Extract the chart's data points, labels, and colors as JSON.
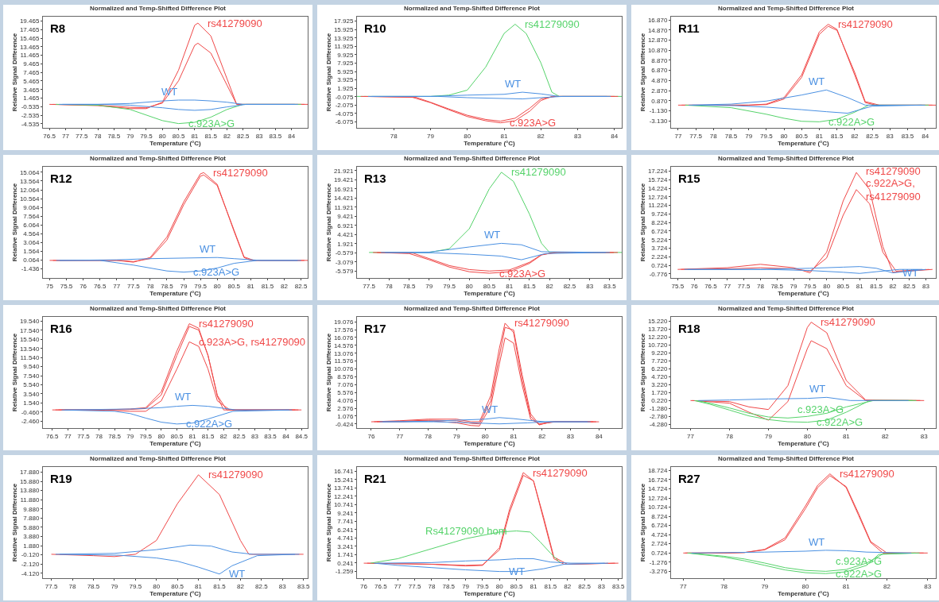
{
  "chart_data": [
    {
      "type": "line",
      "title": "Normalized and Temp-Shifted Difference Plot",
      "xlabel": "Temperature (°C)",
      "ylabel": "Relative Signal Difference",
      "xlim": [
        76.3,
        84.5
      ],
      "xticks": [
        76.5,
        77,
        77.5,
        78,
        78.5,
        79,
        79.5,
        80,
        80.5,
        81,
        81.5,
        82,
        82.5,
        83,
        83.5,
        84
      ],
      "ylim": [
        -5.5,
        20.5
      ],
      "yticks": [
        -4.535,
        -2.535,
        -0.535,
        1.465,
        3.465,
        5.465,
        7.465,
        9.465,
        11.465,
        13.465,
        15.465,
        17.465,
        19.465
      ],
      "series": [
        {
          "name": "rs41279090",
          "color": "#f04848",
          "x": [
            76.5,
            78,
            79,
            79.5,
            80,
            80.5,
            81,
            81.1,
            81.5,
            82,
            82.3,
            83,
            84.5
          ],
          "values": [
            0,
            -0.3,
            -1,
            -1,
            0.5,
            8,
            18.5,
            19,
            16,
            6,
            0,
            0,
            0
          ]
        },
        {
          "color": "#f04848",
          "x": [
            76.6,
            78,
            79,
            79.5,
            80,
            80.5,
            81,
            81.1,
            81.5,
            82,
            82.3,
            83,
            84.4
          ],
          "values": [
            0,
            -0.2,
            -0.7,
            -0.8,
            0.3,
            5.5,
            13.8,
            14.3,
            12,
            4.5,
            0,
            0,
            0
          ]
        },
        {
          "name": "c.923A>G",
          "color": "#55d36a",
          "x": [
            76.7,
            78,
            79,
            79.5,
            80,
            80.5,
            81,
            81.5,
            82,
            82.5,
            84.3
          ],
          "values": [
            0,
            -0.2,
            -1.2,
            -2.5,
            -3.8,
            -4.5,
            -4.2,
            -3,
            -1.2,
            0,
            0
          ]
        },
        {
          "name": "WT",
          "color": "#4a90e2",
          "x": [
            76.8,
            78,
            79,
            80,
            80.5,
            81,
            81.5,
            82,
            82.5,
            84.2
          ],
          "values": [
            0,
            0,
            0.2,
            0.8,
            1,
            1,
            0.8,
            0.5,
            0,
            0
          ]
        },
        {
          "color": "#4a90e2",
          "x": [
            76.9,
            78.2,
            79,
            80,
            80.5,
            81,
            81.5,
            82,
            82.6,
            84.1
          ],
          "values": [
            0,
            0,
            -0.2,
            -0.8,
            -1.2,
            -1.4,
            -1.2,
            -0.6,
            0,
            0
          ]
        }
      ],
      "annotations": [
        "R8"
      ]
    },
    {
      "type": "line",
      "title": "Normalized and Temp-Shifted Difference Plot",
      "xlabel": "Temperature (°C)",
      "ylabel": "Relative Signal Difference",
      "xlim": [
        77,
        84.2
      ],
      "xticks": [
        78,
        79,
        80,
        81,
        82,
        83,
        84
      ],
      "ylim": [
        -7.5,
        19
      ],
      "yticks": [
        -6.075,
        -4.075,
        -2.075,
        -0.075,
        1.925,
        3.925,
        5.925,
        7.925,
        9.925,
        11.925,
        13.925,
        15.925,
        17.925
      ],
      "series": [
        {
          "name": "rs41279090",
          "color": "#55d36a",
          "x": [
            77,
            79,
            79.5,
            80,
            80.5,
            81,
            81.3,
            81.6,
            82,
            82.3,
            82.5,
            84.2
          ],
          "values": [
            0,
            0,
            0.3,
            1.5,
            7,
            15,
            17.2,
            15,
            8,
            1,
            0,
            0
          ]
        },
        {
          "name": "c.923A>G",
          "color": "#f04848",
          "x": [
            77.1,
            78.5,
            79,
            79.5,
            80,
            80.5,
            80.9,
            81.3,
            81.7,
            82,
            82.3,
            84.1
          ],
          "values": [
            0,
            -0.2,
            -1.5,
            -3.2,
            -4.8,
            -5.8,
            -6.3,
            -5.8,
            -3.5,
            -1,
            0,
            0
          ]
        },
        {
          "color": "#f04848",
          "x": [
            77.2,
            78.6,
            79,
            79.5,
            80,
            80.5,
            80.9,
            81.3,
            81.7,
            82,
            82.4,
            84
          ],
          "values": [
            0,
            -0.2,
            -1.4,
            -3,
            -4.5,
            -5.5,
            -5.9,
            -5.2,
            -2.8,
            -0.6,
            0,
            0
          ]
        },
        {
          "name": "WT",
          "color": "#4a90e2",
          "x": [
            77.3,
            79,
            80,
            81,
            81.5,
            82,
            82.5,
            83.9
          ],
          "values": [
            0,
            0,
            0.3,
            0.5,
            1,
            0.6,
            0,
            0
          ]
        },
        {
          "color": "#4a90e2",
          "x": [
            77.4,
            79.2,
            80,
            81,
            81.5,
            82,
            82.6,
            83.8
          ],
          "values": [
            0,
            0,
            -0.3,
            -0.5,
            -0.6,
            -0.3,
            0,
            0
          ]
        }
      ],
      "annotations": [
        "R10"
      ]
    },
    {
      "type": "line",
      "title": "Normalized and Temp-Shifted Difference Plot",
      "xlabel": "Temperature (°C)",
      "ylabel": "Relative Signal Difference",
      "xlim": [
        76.8,
        84.3
      ],
      "xticks": [
        77,
        77.5,
        78,
        78.5,
        79,
        79.5,
        80,
        80.5,
        81,
        81.5,
        82,
        82.5,
        83,
        83.5,
        84
      ],
      "ylim": [
        -4.5,
        17.5
      ],
      "yticks": [
        {
          "value": -3.13,
          "label": "-3.130"
        },
        {
          "value": -1.13,
          "label": "-1.130"
        },
        {
          "value": 0.87,
          "label": "0.870"
        },
        {
          "value": 2.87,
          "label": "2.870"
        },
        {
          "value": 4.87,
          "label": "4.870"
        },
        {
          "value": 6.87,
          "label": "6.870"
        },
        {
          "value": 8.87,
          "label": "8.870"
        },
        {
          "value": 10.87,
          "label": "10.870"
        },
        {
          "value": 12.87,
          "label": "12.870"
        },
        {
          "value": 14.87,
          "label": "14.870"
        },
        {
          "value": 16.87,
          "label": "16.870"
        }
      ],
      "series": [
        {
          "name": "rs41279090",
          "color": "#f04848",
          "x": [
            77,
            78,
            79,
            79.5,
            80,
            80.5,
            81,
            81.25,
            81.5,
            82,
            82.3,
            82.6,
            84.3
          ],
          "values": [
            0,
            0,
            0,
            0.2,
            1.5,
            6,
            14.5,
            16,
            15,
            6,
            0.5,
            0,
            0
          ]
        },
        {
          "color": "#f04848",
          "x": [
            77.1,
            78.1,
            79,
            79.5,
            80,
            80.5,
            81,
            81.25,
            81.5,
            82,
            82.3,
            82.7,
            84.2
          ],
          "values": [
            0,
            0,
            0,
            0.1,
            1.2,
            5.5,
            14,
            15.6,
            14.8,
            6.5,
            0.7,
            0,
            0
          ]
        },
        {
          "name": "c.922A>G",
          "color": "#55d36a",
          "x": [
            77.2,
            78.5,
            79.5,
            80,
            80.5,
            81,
            81.5,
            82,
            82.4,
            84.1
          ],
          "values": [
            0,
            -0.5,
            -1.8,
            -2.6,
            -3.2,
            -3.3,
            -2.8,
            -1.4,
            0,
            0
          ]
        },
        {
          "name": "WT",
          "color": "#4a90e2",
          "x": [
            77.3,
            78.5,
            79.5,
            80.5,
            81.2,
            81.8,
            82.3,
            84
          ],
          "values": [
            0,
            0.2,
            0.8,
            2,
            3,
            1.5,
            0,
            0
          ]
        },
        {
          "color": "#4a90e2",
          "x": [
            77.4,
            78.6,
            79.5,
            80.5,
            81.2,
            81.8,
            82.5,
            83.9
          ],
          "values": [
            0,
            -0.1,
            -0.4,
            -0.9,
            -1.3,
            -1.6,
            -0.2,
            0
          ]
        }
      ],
      "annotations": [
        "R11"
      ]
    },
    {
      "type": "line",
      "title": "Normalized and Temp-Shifted Difference Plot",
      "xlabel": "Temperature (°C)",
      "ylabel": "Relative Signal Difference",
      "xlim": [
        74.8,
        82.7
      ],
      "xticks": [
        75,
        75.5,
        76,
        76.5,
        77,
        77.5,
        78,
        78.5,
        79,
        79.5,
        80,
        80.5,
        81,
        81.5,
        82,
        82.5
      ],
      "ylim": [
        -3,
        16
      ],
      "yticks": [
        -1.436,
        0.064,
        1.564,
        3.064,
        4.564,
        6.064,
        7.564,
        9.064,
        10.564,
        12.064,
        13.564,
        15.064
      ],
      "series": [
        {
          "name": "rs41279090",
          "color": "#f04848",
          "x": [
            75,
            77,
            77.5,
            78,
            78.5,
            79,
            79.5,
            79.6,
            80,
            80.5,
            80.8,
            81,
            82.7
          ],
          "values": [
            0,
            0,
            -0.3,
            0.5,
            4,
            10,
            14.8,
            15,
            13,
            5,
            0.5,
            0,
            0
          ]
        },
        {
          "color": "#f04848",
          "x": [
            75.1,
            77.1,
            77.5,
            78,
            78.5,
            79,
            79.5,
            79.6,
            80,
            80.5,
            80.8,
            81.1,
            82.6
          ],
          "values": [
            0,
            0,
            -0.2,
            0.3,
            3.5,
            9.5,
            14.4,
            14.6,
            12.8,
            5.2,
            0.6,
            0,
            0
          ]
        },
        {
          "name": "c.923A>G",
          "color": "#4a90e2",
          "x": [
            75.2,
            76.5,
            77.5,
            78.5,
            79,
            79.5,
            80,
            80.5,
            81.2,
            82.5
          ],
          "values": [
            0,
            0,
            -0.8,
            -1.8,
            -2,
            -1.8,
            -1.3,
            -0.5,
            0,
            0
          ]
        },
        {
          "name": "WT",
          "color": "#4a90e2",
          "x": [
            75.3,
            77,
            78,
            79,
            80,
            80.5,
            81.3,
            82.4
          ],
          "values": [
            0,
            0.1,
            0.3,
            0.4,
            0.5,
            0.3,
            0,
            0
          ]
        }
      ],
      "annotations": [
        "R12"
      ]
    },
    {
      "type": "line",
      "title": "Normalized and Temp-Shifted Difference Plot",
      "xlabel": "Temperature (°C)",
      "ylabel": "Relative Signal Difference",
      "xlim": [
        77.2,
        83.8
      ],
      "xticks": [
        77.5,
        78,
        78.5,
        79,
        79.5,
        80,
        80.5,
        81,
        81.5,
        82,
        82.5,
        83,
        83.5
      ],
      "ylim": [
        -7.5,
        23
      ],
      "yticks": [
        -5.579,
        -3.079,
        -0.579,
        1.921,
        4.421,
        6.921,
        9.421,
        11.921,
        14.421,
        16.921,
        19.421,
        21.921
      ],
      "series": [
        {
          "name": "rs41279090",
          "color": "#55d36a",
          "x": [
            77.5,
            79,
            79.5,
            80,
            80.5,
            80.8,
            81.1,
            81.5,
            81.8,
            82,
            83.8
          ],
          "values": [
            -0.5,
            -0.5,
            0.5,
            6,
            17,
            21.5,
            19,
            10,
            2,
            -0.5,
            -0.5
          ]
        },
        {
          "name": "c.923A>G",
          "color": "#f04848",
          "x": [
            77.6,
            78.5,
            79,
            79.5,
            80,
            80.5,
            81,
            81.5,
            81.8,
            82.1,
            83.7
          ],
          "values": [
            -0.5,
            -0.8,
            -2.5,
            -4.5,
            -5.8,
            -6.2,
            -5.8,
            -3.5,
            -1.2,
            -0.5,
            -0.5
          ]
        },
        {
          "color": "#f04848",
          "x": [
            77.7,
            78.6,
            79,
            79.5,
            80,
            80.5,
            81,
            81.5,
            81.8,
            82.2,
            83.6
          ],
          "values": [
            -0.5,
            -0.7,
            -2.2,
            -4.1,
            -5.2,
            -5.6,
            -5.3,
            -3.2,
            -1.1,
            -0.5,
            -0.5
          ]
        },
        {
          "name": "WT",
          "color": "#4a90e2",
          "x": [
            77.8,
            79,
            80,
            80.8,
            81.3,
            81.8,
            83.5
          ],
          "values": [
            -0.5,
            -0.4,
            1,
            2,
            1.6,
            -0.3,
            -0.5
          ]
        },
        {
          "color": "#4a90e2",
          "x": [
            77.9,
            79.1,
            80,
            80.8,
            81.3,
            81.9,
            83.4
          ],
          "values": [
            -0.5,
            -0.6,
            -1,
            -1.5,
            -2.5,
            -0.8,
            -0.5
          ]
        }
      ],
      "annotations": [
        "R13"
      ]
    },
    {
      "type": "line",
      "title": "Normalized and Temp-Shifted Difference Plot",
      "xlabel": "Temperature (°C)",
      "ylabel": "Relative Signal Difference",
      "xlim": [
        75.3,
        83.3
      ],
      "xticks": [
        75.5,
        76,
        76.5,
        77,
        77.5,
        78,
        78.5,
        79,
        79.5,
        80,
        80.5,
        81,
        81.5,
        82,
        82.5,
        83
      ],
      "ylim": [
        -1.5,
        18
      ],
      "yticks": [
        -0.776,
        0.724,
        2.224,
        3.724,
        5.224,
        6.724,
        8.224,
        9.724,
        11.224,
        12.724,
        14.224,
        15.724,
        17.224
      ],
      "series": [
        {
          "name": "rs41279090",
          "color": "#f04848",
          "x": [
            75.5,
            77,
            78,
            79,
            79.5,
            80,
            80.5,
            80.9,
            81.3,
            81.7,
            82,
            83.2
          ],
          "values": [
            0,
            0.3,
            0.9,
            0.3,
            -0.6,
            3,
            12,
            17,
            14,
            4,
            -0.5,
            0
          ]
        },
        {
          "name": "c.922A>G,\nrs41279090",
          "color": "#f04848",
          "x": [
            75.6,
            77.1,
            78,
            79,
            79.5,
            80,
            80.5,
            80.9,
            81.3,
            81.7,
            82.1,
            83.1
          ],
          "values": [
            0,
            0.1,
            0.3,
            0.1,
            -0.3,
            2,
            9.5,
            14,
            11.5,
            3,
            -0.3,
            0
          ]
        },
        {
          "name": "WT",
          "color": "#4a90e2",
          "x": [
            75.7,
            78,
            79.5,
            80.5,
            81,
            81.5,
            82,
            83
          ],
          "values": [
            0,
            0,
            0.2,
            0.4,
            0.5,
            0.2,
            -0.6,
            0
          ]
        },
        {
          "color": "#4a90e2",
          "x": [
            75.8,
            78.2,
            79.5,
            80.5,
            81,
            81.5,
            82.2,
            82.9
          ],
          "values": [
            0,
            0,
            -0.2,
            -0.5,
            -0.7,
            -0.4,
            0,
            0
          ]
        }
      ],
      "annotations": [
        "R15"
      ]
    },
    {
      "type": "line",
      "title": "Normalized and Temp-Shifted Difference Plot",
      "xlabel": "Temperature (°C)",
      "ylabel": "Relative Signal Difference",
      "xlim": [
        76.2,
        84.7
      ],
      "xticks": [
        76.5,
        77,
        77.5,
        78,
        78.5,
        79,
        79.5,
        80,
        80.5,
        81,
        81.5,
        82,
        82.5,
        83,
        83.5,
        84,
        84.5
      ],
      "ylim": [
        -4,
        20.5
      ],
      "yticks": [
        {
          "value": -2.46,
          "label": "-2.460"
        },
        {
          "value": -0.46,
          "label": "-0.460"
        },
        {
          "value": 1.54,
          "label": "1.540"
        },
        {
          "value": 3.54,
          "label": "3.540"
        },
        {
          "value": 5.54,
          "label": "5.540"
        },
        {
          "value": 7.54,
          "label": "7.540"
        },
        {
          "value": 9.54,
          "label": "9.540"
        },
        {
          "value": 11.54,
          "label": "11.540"
        },
        {
          "value": 13.54,
          "label": "13.540"
        },
        {
          "value": 15.54,
          "label": "15.540"
        },
        {
          "value": 17.54,
          "label": "17.540"
        },
        {
          "value": 19.54,
          "label": "19.540"
        }
      ],
      "series": [
        {
          "name": "rs41279090",
          "color": "#f04848",
          "x": [
            76.5,
            78,
            79,
            79.5,
            80,
            80.5,
            80.9,
            81.2,
            81.5,
            81.8,
            82,
            84.5
          ],
          "values": [
            0,
            0,
            0.2,
            0.5,
            4,
            13,
            19,
            18,
            12,
            3,
            0,
            0
          ]
        },
        {
          "color": "#f04848",
          "x": [
            76.6,
            78.1,
            79,
            79.5,
            80,
            80.5,
            80.9,
            81.2,
            81.5,
            81.8,
            82.1,
            84.4
          ],
          "values": [
            0,
            0,
            0.1,
            0.3,
            3.3,
            12,
            18.4,
            17.6,
            12,
            3.2,
            0,
            0
          ]
        },
        {
          "name": "c.923A>G, rs41279090",
          "color": "#f04848",
          "x": [
            76.7,
            78.2,
            79,
            79.5,
            80,
            80.5,
            80.9,
            81.2,
            81.5,
            81.8,
            82.2,
            84.3
          ],
          "values": [
            0,
            0,
            -0.3,
            -0.3,
            2,
            9,
            15,
            14,
            9,
            2,
            0,
            0
          ]
        },
        {
          "name": "c.922A>G",
          "color": "#4a90e2",
          "x": [
            76.8,
            78.5,
            79,
            79.5,
            80,
            80.5,
            81,
            81.5,
            82.3,
            84.2
          ],
          "values": [
            0,
            -0.3,
            -0.8,
            -1.8,
            -2.7,
            -3.1,
            -2.9,
            -2,
            -0.3,
            0
          ]
        },
        {
          "name": "WT",
          "color": "#4a90e2",
          "x": [
            76.9,
            79,
            80,
            80.5,
            81,
            81.5,
            82.4,
            84.1
          ],
          "values": [
            0,
            0.2,
            0.5,
            0.8,
            1,
            0.8,
            0,
            0
          ]
        }
      ],
      "annotations": [
        "R16"
      ]
    },
    {
      "type": "line",
      "title": "Normalized and Temp-Shifted Difference Plot",
      "xlabel": "Temperature (°C)",
      "ylabel": "Relative Signal Difference",
      "xlim": [
        75.5,
        84.8
      ],
      "xticks": [
        76,
        77,
        78,
        79,
        80,
        81,
        82,
        83,
        84
      ],
      "ylim": [
        -1.2,
        20
      ],
      "yticks": [
        -0.424,
        1.076,
        2.576,
        4.076,
        5.576,
        7.076,
        8.576,
        10.076,
        11.576,
        13.076,
        14.576,
        16.076,
        17.576,
        19.076
      ],
      "series": [
        {
          "name": "rs41279090",
          "color": "#f04848",
          "x": [
            76,
            77,
            78,
            79,
            79.5,
            79.8,
            80.2,
            80.5,
            80.7,
            81,
            81.3,
            81.6,
            81.9,
            82.3,
            84
          ],
          "values": [
            0,
            0.2,
            0.5,
            0.5,
            0,
            0,
            5,
            14,
            18.8,
            17,
            8,
            1,
            -0.6,
            0,
            0
          ]
        },
        {
          "color": "#f04848",
          "x": [
            76.1,
            77,
            78,
            79,
            79.5,
            79.8,
            80.2,
            80.5,
            80.7,
            81,
            81.3,
            81.6,
            81.9,
            82.4,
            83.9
          ],
          "values": [
            0,
            0.1,
            0.3,
            0.2,
            -0.3,
            -0.4,
            4,
            12.5,
            18,
            17.5,
            9,
            1.5,
            -0.5,
            0,
            0
          ]
        },
        {
          "color": "#f04848",
          "x": [
            76.2,
            77.1,
            78,
            79,
            79.5,
            79.8,
            80.2,
            80.5,
            80.7,
            81,
            81.3,
            81.6,
            81.9,
            82.5,
            83.8
          ],
          "values": [
            0,
            0,
            0.2,
            -0.2,
            -0.7,
            -0.8,
            3,
            11,
            16,
            15,
            7,
            0.5,
            -0.4,
            0,
            0
          ]
        },
        {
          "name": "WT",
          "color": "#4a90e2",
          "x": [
            76.3,
            78,
            79,
            80,
            80.5,
            81,
            81.5,
            82.1,
            83.7
          ],
          "values": [
            0,
            0.1,
            0.3,
            0.5,
            0.8,
            0.6,
            0.3,
            0,
            0
          ]
        },
        {
          "color": "#4a90e2",
          "x": [
            76.4,
            78.2,
            79,
            80,
            80.5,
            81,
            81.5,
            82.2,
            83.6
          ],
          "values": [
            0,
            0,
            -0.1,
            -0.3,
            -0.4,
            -0.3,
            -0.2,
            0,
            0
          ]
        }
      ],
      "annotations": [
        "R17"
      ]
    },
    {
      "type": "line",
      "title": "Normalized and Temp-Shifted Difference Plot",
      "xlabel": "Temperature (°C)",
      "ylabel": "Relative Signal Difference",
      "xlim": [
        76.5,
        83.3
      ],
      "xticks": [
        77,
        78,
        79,
        80,
        81,
        82,
        83
      ],
      "ylim": [
        -5,
        16
      ],
      "yticks": [
        {
          "value": -4.28,
          "label": "-4.280"
        },
        {
          "value": -2.78,
          "label": "-2.780"
        },
        {
          "value": -1.28,
          "label": "-1.280"
        },
        {
          "value": 0.22,
          "label": "0.220"
        },
        {
          "value": 1.72,
          "label": "1.720"
        },
        {
          "value": 3.22,
          "label": "3.220"
        },
        {
          "value": 4.72,
          "label": "4.720"
        },
        {
          "value": 6.22,
          "label": "6.220"
        },
        {
          "value": 7.72,
          "label": "7.720"
        },
        {
          "value": 9.22,
          "label": "9.220"
        },
        {
          "value": 10.72,
          "label": "10.720"
        },
        {
          "value": 12.22,
          "label": "12.220"
        },
        {
          "value": 13.72,
          "label": "13.720"
        },
        {
          "value": 15.22,
          "label": "15.220"
        }
      ],
      "series": [
        {
          "name": "rs41279090",
          "color": "#f04848",
          "x": [
            77,
            78,
            78.5,
            79,
            79.5,
            80,
            80.1,
            80.5,
            81,
            81.5,
            83
          ],
          "values": [
            0.2,
            0,
            -1,
            -1.5,
            3,
            14,
            15,
            13,
            4,
            0.3,
            0.2
          ]
        },
        {
          "color": "#f04848",
          "x": [
            77.05,
            78,
            78.5,
            79,
            79.5,
            80,
            80.1,
            80.5,
            81,
            81.5,
            82.9
          ],
          "values": [
            0.2,
            -0.3,
            -2,
            -3.5,
            0,
            10,
            11.5,
            10,
            3,
            0.2,
            0.2
          ]
        },
        {
          "name": "c.922A>G",
          "color": "#55d36a",
          "x": [
            77.1,
            77.5,
            78,
            78.5,
            79,
            79.5,
            80,
            80.5,
            81,
            81.6,
            82.8
          ],
          "values": [
            0.2,
            -0.5,
            -1.6,
            -2.7,
            -3.4,
            -3.8,
            -3.9,
            -3.5,
            -2,
            0.2,
            0.2
          ]
        },
        {
          "name": "c.923A>G",
          "color": "#55d36a",
          "x": [
            77.15,
            77.5,
            78,
            78.5,
            79,
            79.5,
            80,
            80.5,
            81,
            81.7,
            82.7
          ],
          "values": [
            0.2,
            -0.3,
            -1.2,
            -2.2,
            -2.9,
            -3.1,
            -2.8,
            -2.2,
            -1,
            0.2,
            0.2
          ]
        },
        {
          "name": "WT",
          "color": "#4a90e2",
          "x": [
            77.2,
            78,
            79,
            80,
            80.5,
            81.1,
            82.6
          ],
          "values": [
            0.2,
            0.3,
            0.5,
            0.6,
            0.8,
            0.2,
            0.2
          ]
        }
      ],
      "annotations": [
        "R18"
      ]
    },
    {
      "type": "line",
      "title": "Normalized and Temp-Shifted Difference Plot",
      "xlabel": "Temperature (°C)",
      "ylabel": "Relative Signal Difference",
      "xlim": [
        77.3,
        83.6
      ],
      "xticks": [
        77.5,
        78,
        78.5,
        79,
        79.5,
        80,
        80.5,
        81,
        81.5,
        82,
        82.5,
        83,
        83.5
      ],
      "ylim": [
        -5.2,
        19
      ],
      "yticks": [
        {
          "value": -4.12,
          "label": "-4.120"
        },
        {
          "value": -2.12,
          "label": "-2.120"
        },
        {
          "value": -0.12,
          "label": "-0.120"
        },
        {
          "value": 1.88,
          "label": "1.880"
        },
        {
          "value": 3.88,
          "label": "3.880"
        },
        {
          "value": 5.88,
          "label": "5.880"
        },
        {
          "value": 7.88,
          "label": "7.880"
        },
        {
          "value": 9.88,
          "label": "9.880"
        },
        {
          "value": 11.88,
          "label": "11.880"
        },
        {
          "value": 13.88,
          "label": "13.880"
        },
        {
          "value": 15.88,
          "label": "15.880"
        },
        {
          "value": 17.88,
          "label": "17.880"
        }
      ],
      "series": [
        {
          "name": "rs41279090",
          "color": "#f04848",
          "x": [
            77.5,
            78.5,
            79,
            79.5,
            80,
            80.5,
            81,
            81.5,
            82,
            82.2,
            83.5
          ],
          "values": [
            0,
            -0.3,
            -0.5,
            0,
            3,
            11,
            17.3,
            13,
            3,
            0,
            0
          ]
        },
        {
          "color": "#4a90e2",
          "x": [
            77.6,
            79,
            80,
            80.8,
            81.3,
            81.8,
            82.3,
            83.4
          ],
          "values": [
            0,
            0.2,
            1,
            2,
            1.8,
            0.5,
            0,
            0
          ]
        },
        {
          "name": "WT",
          "color": "#4a90e2",
          "x": [
            77.7,
            79.1,
            80,
            80.5,
            81,
            81.5,
            81.8,
            82.4,
            83.3
          ],
          "values": [
            0,
            -0.2,
            -0.8,
            -1.5,
            -2.8,
            -4.3,
            -2.5,
            -0.3,
            0
          ]
        }
      ],
      "annotations": [
        "R19"
      ]
    },
    {
      "type": "line",
      "title": "Normalized and Temp-Shifted Difference Plot",
      "xlabel": "Temperature (°C)",
      "ylabel": "Relative Signal Difference",
      "xlim": [
        75.8,
        83.6
      ],
      "xticks": [
        76,
        76.5,
        77,
        77.5,
        78,
        78.5,
        79,
        79.5,
        80,
        80.5,
        81,
        81.5,
        82,
        82.5,
        83,
        83.5
      ],
      "ylim": [
        -2.5,
        17.5
      ],
      "yticks": [
        -1.259,
        0.241,
        1.741,
        3.241,
        4.741,
        6.241,
        7.741,
        9.241,
        10.741,
        12.241,
        13.741,
        15.241,
        16.741
      ],
      "series": [
        {
          "name": "rs41279090",
          "color": "#f04848",
          "x": [
            76,
            78,
            79,
            79.5,
            80,
            80.3,
            80.7,
            81,
            81.3,
            81.6,
            81.9,
            83.5
          ],
          "values": [
            0.2,
            0,
            -0.3,
            -0.2,
            3,
            10,
            16.5,
            15,
            8,
            1,
            0,
            0.2
          ]
        },
        {
          "color": "#f04848",
          "x": [
            76.1,
            78.1,
            79,
            79.5,
            80,
            80.3,
            80.7,
            81,
            81.3,
            81.6,
            82,
            83.4
          ],
          "values": [
            0.2,
            0,
            -0.2,
            -0.1,
            2.6,
            9.4,
            16,
            15,
            8.4,
            1.3,
            0,
            0.2
          ]
        },
        {
          "name": "Rs41279090 hom",
          "color": "#55d36a",
          "x": [
            76.2,
            77,
            78,
            79,
            80,
            80.5,
            80.9,
            81.2,
            81.5,
            81.8
          ],
          "values": [
            0.2,
            1,
            2.8,
            4.6,
            5.8,
            6,
            5.8,
            4,
            2,
            0.2
          ]
        },
        {
          "name": "WT",
          "color": "#4a90e2",
          "x": [
            76.3,
            77,
            78,
            79,
            80,
            80.7,
            81.3,
            81.9,
            83.2
          ],
          "values": [
            0.2,
            -0.2,
            -0.6,
            -1,
            -1.3,
            -1.3,
            -0.8,
            0,
            0.2
          ]
        },
        {
          "color": "#4a90e2",
          "x": [
            76.4,
            78,
            79,
            80,
            80.5,
            81,
            81.5,
            82.1,
            83.1
          ],
          "values": [
            0.2,
            0.3,
            0.6,
            0.8,
            1,
            1,
            0.4,
            0.2,
            0.2
          ]
        }
      ],
      "annotations": [
        "R21"
      ]
    },
    {
      "type": "line",
      "title": "Normalized and Temp-Shifted Difference Plot",
      "xlabel": "Temperature (°C)",
      "ylabel": "Relative Signal Difference",
      "xlim": [
        76.7,
        83.2
      ],
      "xticks": [
        77,
        78,
        79,
        80,
        81,
        82,
        83
      ],
      "ylim": [
        -4.8,
        19.5
      ],
      "yticks": [
        -3.276,
        -1.276,
        0.724,
        2.724,
        4.724,
        6.724,
        8.724,
        10.724,
        12.724,
        14.724,
        16.724,
        18.724
      ],
      "series": [
        {
          "name": "rs41279090",
          "color": "#f04848",
          "x": [
            77,
            78,
            78.5,
            79,
            79.5,
            80,
            80.3,
            80.6,
            81,
            81.3,
            81.6,
            81.9,
            83
          ],
          "values": [
            0.7,
            0.7,
            0.8,
            1.5,
            4,
            11,
            15.5,
            18,
            15,
            9,
            3,
            0.7,
            0.7
          ]
        },
        {
          "color": "#f04848",
          "x": [
            77.05,
            78.1,
            78.5,
            79,
            79.5,
            80,
            80.3,
            80.6,
            81,
            81.3,
            81.6,
            82,
            82.9
          ],
          "values": [
            0.7,
            0.7,
            0.8,
            1.4,
            3.6,
            10.4,
            15,
            17.6,
            15.2,
            9.4,
            3.2,
            0.7,
            0.7
          ]
        },
        {
          "name": "c.922A>G",
          "color": "#55d36a",
          "x": [
            77.1,
            78,
            78.5,
            79,
            79.5,
            80,
            80.5,
            81,
            81.5,
            81.8,
            82.8
          ],
          "values": [
            0.7,
            -0.2,
            -1,
            -2,
            -3,
            -3.6,
            -3.8,
            -3.4,
            -2,
            0.4,
            0.7
          ]
        },
        {
          "name": "c.923A>G",
          "color": "#55d36a",
          "x": [
            77.15,
            78,
            78.5,
            79,
            79.5,
            80,
            80.5,
            81,
            81.5,
            81.9,
            82.7
          ],
          "values": [
            0.7,
            0,
            -0.6,
            -1.5,
            -2.5,
            -3.1,
            -3.3,
            -2.9,
            -1.5,
            0.5,
            0.7
          ]
        },
        {
          "name": "WT",
          "color": "#4a90e2",
          "x": [
            77.2,
            79,
            80,
            80.5,
            81,
            81.5,
            82.6
          ],
          "values": [
            0.7,
            0.9,
            1.1,
            1.3,
            1.2,
            0.9,
            0.7
          ]
        }
      ],
      "annotations": [
        "R27"
      ]
    }
  ]
}
